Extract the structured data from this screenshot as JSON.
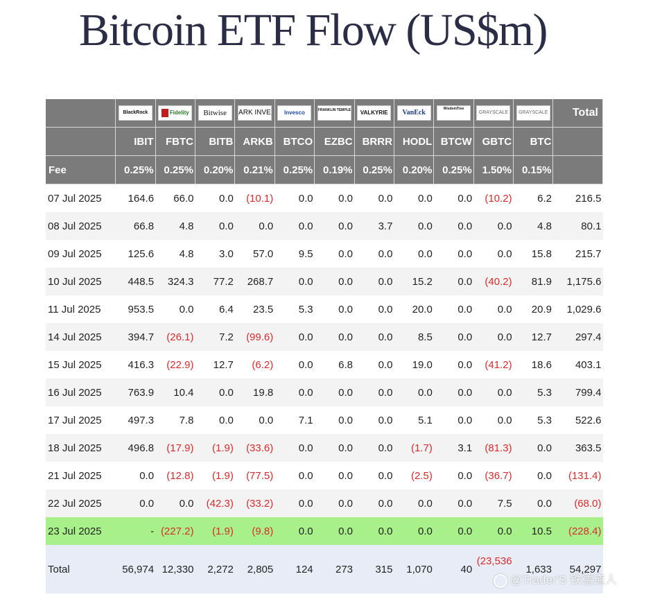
{
  "title": "Bitcoin ETF Flow (US$m)",
  "issuers": [
    {
      "logo": "BlackRock",
      "ticker": "IBIT",
      "fee": "0.25%"
    },
    {
      "logo": "Fidelity",
      "ticker": "FBTC",
      "fee": "0.25%"
    },
    {
      "logo": "Bitwise",
      "ticker": "BITB",
      "fee": "0.20%"
    },
    {
      "logo": "ARK INVEST",
      "ticker": "ARKB",
      "fee": "0.21%"
    },
    {
      "logo": "Invesco",
      "ticker": "BTCO",
      "fee": "0.25%"
    },
    {
      "logo": "FRANKLIN TEMPLETON",
      "ticker": "EZBC",
      "fee": "0.19%"
    },
    {
      "logo": "VALKYRIE",
      "ticker": "BRRR",
      "fee": "0.25%"
    },
    {
      "logo": "VanEck",
      "ticker": "HODL",
      "fee": "0.20%"
    },
    {
      "logo": "WisdomTree",
      "ticker": "BTCW",
      "fee": "0.25%"
    },
    {
      "logo": "GRAYSCALE",
      "ticker": "GBTC",
      "fee": "1.50%"
    },
    {
      "logo": "GRAYSCALE",
      "ticker": "BTC",
      "fee": "0.15%"
    }
  ],
  "header": {
    "total": "Total",
    "fee_label": "Fee"
  },
  "rows": [
    {
      "date": "07 Jul 2025",
      "v": [
        "164.6",
        "66.0",
        "0.0",
        "(10.1)",
        "0.0",
        "0.0",
        "0.0",
        "0.0",
        "0.0",
        "(10.2)",
        "6.2"
      ],
      "total": "216.5"
    },
    {
      "date": "08 Jul 2025",
      "v": [
        "66.8",
        "4.8",
        "0.0",
        "0.0",
        "0.0",
        "0.0",
        "3.7",
        "0.0",
        "0.0",
        "0.0",
        "4.8"
      ],
      "total": "80.1"
    },
    {
      "date": "09 Jul 2025",
      "v": [
        "125.6",
        "4.8",
        "3.0",
        "57.0",
        "9.5",
        "0.0",
        "0.0",
        "0.0",
        "0.0",
        "0.0",
        "15.8"
      ],
      "total": "215.7"
    },
    {
      "date": "10 Jul 2025",
      "v": [
        "448.5",
        "324.3",
        "77.2",
        "268.7",
        "0.0",
        "0.0",
        "0.0",
        "15.2",
        "0.0",
        "(40.2)",
        "81.9"
      ],
      "total": "1,175.6"
    },
    {
      "date": "11 Jul 2025",
      "v": [
        "953.5",
        "0.0",
        "6.4",
        "23.5",
        "5.3",
        "0.0",
        "0.0",
        "20.0",
        "0.0",
        "0.0",
        "20.9"
      ],
      "total": "1,029.6"
    },
    {
      "date": "14 Jul 2025",
      "v": [
        "394.7",
        "(26.1)",
        "7.2",
        "(99.6)",
        "0.0",
        "0.0",
        "0.0",
        "8.5",
        "0.0",
        "0.0",
        "12.7"
      ],
      "total": "297.4"
    },
    {
      "date": "15 Jul 2025",
      "v": [
        "416.3",
        "(22.9)",
        "12.7",
        "(6.2)",
        "0.0",
        "6.8",
        "0.0",
        "19.0",
        "0.0",
        "(41.2)",
        "18.6"
      ],
      "total": "403.1"
    },
    {
      "date": "16 Jul 2025",
      "v": [
        "763.9",
        "10.4",
        "0.0",
        "19.8",
        "0.0",
        "0.0",
        "0.0",
        "0.0",
        "0.0",
        "0.0",
        "5.3"
      ],
      "total": "799.4"
    },
    {
      "date": "17 Jul 2025",
      "v": [
        "497.3",
        "7.8",
        "0.0",
        "0.0",
        "7.1",
        "0.0",
        "0.0",
        "5.1",
        "0.0",
        "0.0",
        "5.3"
      ],
      "total": "522.6"
    },
    {
      "date": "18 Jul 2025",
      "v": [
        "496.8",
        "(17.9)",
        "(1.9)",
        "(33.6)",
        "0.0",
        "0.0",
        "0.0",
        "(1.7)",
        "3.1",
        "(81.3)",
        "0.0"
      ],
      "total": "363.5"
    },
    {
      "date": "21 Jul 2025",
      "v": [
        "0.0",
        "(12.8)",
        "(1.9)",
        "(77.5)",
        "0.0",
        "0.0",
        "0.0",
        "(2.5)",
        "0.0",
        "(36.7)",
        "0.0"
      ],
      "total": "(131.4)"
    },
    {
      "date": "22 Jul 2025",
      "v": [
        "0.0",
        "0.0",
        "(42.3)",
        "(33.2)",
        "0.0",
        "0.0",
        "0.0",
        "0.0",
        "0.0",
        "7.5",
        "0.0"
      ],
      "total": "(68.0)"
    },
    {
      "date": "23 Jul 2025",
      "v": [
        "-",
        "(227.2)",
        "(1.9)",
        "(9.8)",
        "0.0",
        "0.0",
        "0.0",
        "0.0",
        "0.0",
        "0.0",
        "10.5"
      ],
      "total": "(228.4)",
      "highlight": true
    }
  ],
  "total_row": {
    "label": "Total",
    "v": [
      "56,974",
      "12,330",
      "2,272",
      "2,805",
      "124",
      "273",
      "315",
      "1,070",
      "40",
      "(23,536",
      "1,633"
    ],
    "total": "54,297"
  },
  "watermark": "@Trader'S 铁德道人",
  "colors": {
    "header_bg": "#7b7b7b",
    "negative": "#d92b2b",
    "highlight": "#a8f08a",
    "total_bg": "#e8ecf7"
  }
}
